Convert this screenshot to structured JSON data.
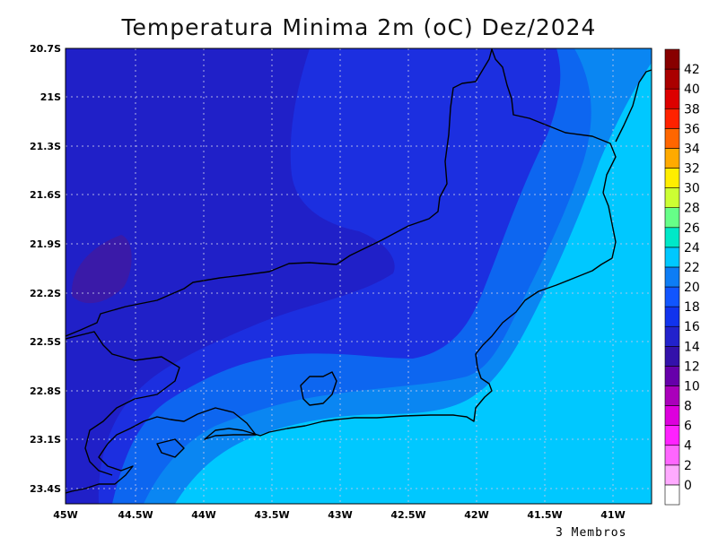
{
  "title": "Temperatura Minima 2m (oC) Dez/2024",
  "footer": "3 Membros",
  "lat_labels": [
    "20.7S",
    "21S",
    "21.3S",
    "21.6S",
    "21.9S",
    "22.2S",
    "22.5S",
    "22.8S",
    "23.1S",
    "23.4S"
  ],
  "lon_labels": [
    "45W",
    "44.5W",
    "44W",
    "43.5W",
    "43W",
    "42.5W",
    "42W",
    "41.5W",
    "41W"
  ],
  "colorbar": {
    "labels": [
      "0",
      "2",
      "4",
      "6",
      "8",
      "10",
      "12",
      "14",
      "16",
      "18",
      "20",
      "22",
      "24",
      "26",
      "28",
      "30",
      "32",
      "34",
      "36",
      "38",
      "40",
      "42"
    ],
    "colors": [
      "#ffffff",
      "#ffaaff",
      "#ff66ff",
      "#ff22ff",
      "#dd00dd",
      "#aa00bb",
      "#6600aa",
      "#3311aa",
      "#2222cc",
      "#1133ee",
      "#1155ff",
      "#0d7df5",
      "#00c8ff",
      "#00e8c8",
      "#66ff88",
      "#ccff33",
      "#ffee00",
      "#ffaa00",
      "#ff6600",
      "#ff2200",
      "#dd0000",
      "#aa0000",
      "#880000"
    ]
  },
  "regions": {
    "band_12_14_color": "#3a1aa8",
    "band_14_16_color": "#2020c8",
    "band_16_18_color": "#1c2fe0",
    "band_18_20_color": "#0d66f0",
    "band_20_22_color": "#0a86f2",
    "band_22_24_color": "#00c8ff"
  }
}
